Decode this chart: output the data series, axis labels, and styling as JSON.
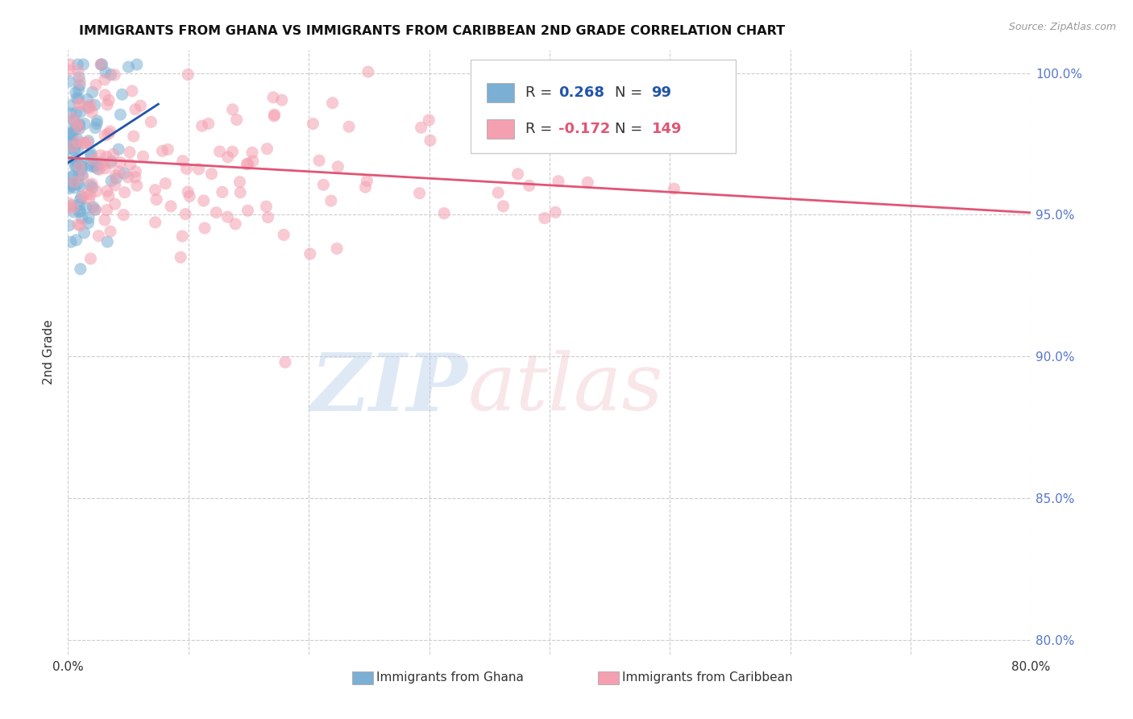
{
  "title": "IMMIGRANTS FROM GHANA VS IMMIGRANTS FROM CARIBBEAN 2ND GRADE CORRELATION CHART",
  "source": "Source: ZipAtlas.com",
  "ylabel": "2nd Grade",
  "xlim": [
    0.0,
    0.8
  ],
  "ylim": [
    0.795,
    1.008
  ],
  "x_ticks": [
    0.0,
    0.1,
    0.2,
    0.3,
    0.4,
    0.5,
    0.6,
    0.7,
    0.8
  ],
  "y_ticks": [
    0.8,
    0.85,
    0.9,
    0.95,
    1.0
  ],
  "y_tick_labels_right": [
    "80.0%",
    "85.0%",
    "90.0%",
    "95.0%",
    "100.0%"
  ],
  "ghana_R": 0.268,
  "ghana_N": 99,
  "caribbean_R": -0.172,
  "caribbean_N": 149,
  "ghana_color": "#7BAFD4",
  "caribbean_color": "#F4A0B0",
  "trend_ghana_color": "#2255AA",
  "trend_caribbean_color": "#E05575",
  "watermark_zip": "ZIP",
  "watermark_atlas": "atlas",
  "legend_ghana": "Immigrants from Ghana",
  "legend_caribbean": "Immigrants from Caribbean",
  "background_color": "#ffffff",
  "grid_color": "#cccccc",
  "ghana_seed": 7,
  "caribbean_seed": 13,
  "right_axis_color": "#5577CC",
  "title_color": "#111111",
  "label_color": "#333333"
}
